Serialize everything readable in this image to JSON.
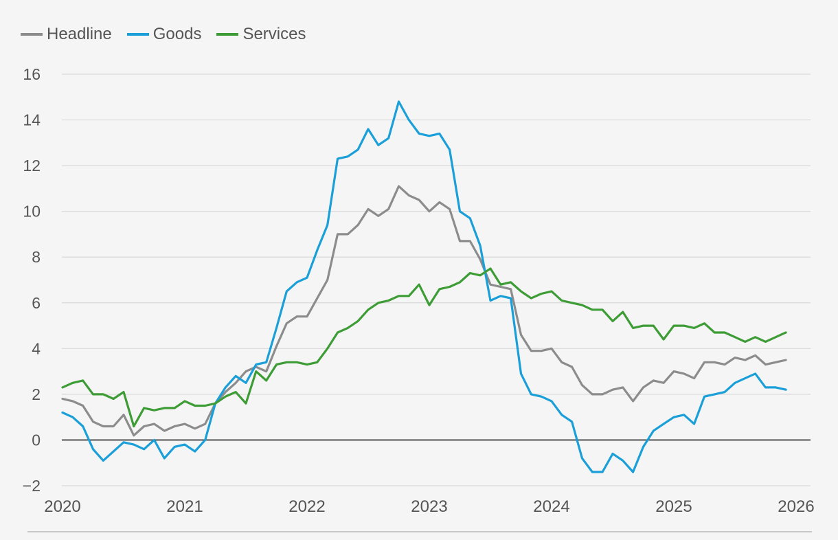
{
  "chart_data": {
    "type": "line",
    "title": "",
    "xlabel": "",
    "ylabel": "",
    "ylim": [
      -2,
      16
    ],
    "yticks": [
      -2,
      0,
      2,
      4,
      6,
      8,
      10,
      12,
      14,
      16
    ],
    "ytick_labels": [
      "−2",
      "0",
      "2",
      "4",
      "6",
      "8",
      "10",
      "12",
      "14",
      "16"
    ],
    "xlim": [
      2020,
      2026
    ],
    "xticks": [
      2020,
      2021,
      2022,
      2023,
      2024,
      2025,
      2026
    ],
    "xtick_labels": [
      "2020",
      "2021",
      "2022",
      "2023",
      "2024",
      "2025",
      "2026"
    ],
    "grid": true,
    "legend_position": "top-left",
    "x_start": 2020.0,
    "x_step": 0.08333,
    "series": [
      {
        "name": "Headline",
        "color": "#8c8c8c",
        "values": [
          1.8,
          1.7,
          1.5,
          0.8,
          0.6,
          0.6,
          1.1,
          0.2,
          0.6,
          0.7,
          0.4,
          0.6,
          0.7,
          0.5,
          0.7,
          1.6,
          2.1,
          2.5,
          3.0,
          3.2,
          3.0,
          4.1,
          5.1,
          5.4,
          5.4,
          6.2,
          7.0,
          9.0,
          9.0,
          9.4,
          10.1,
          9.8,
          10.1,
          11.1,
          10.7,
          10.5,
          10.0,
          10.4,
          10.1,
          8.7,
          8.7,
          7.9,
          6.8,
          6.7,
          6.6,
          4.6,
          3.9,
          3.9,
          4.0,
          3.4,
          3.2,
          2.4,
          2.0,
          2.0,
          2.2,
          2.3,
          1.7,
          2.3,
          2.6,
          2.5,
          3.0,
          2.9,
          2.7,
          3.4,
          3.4,
          3.3,
          3.6,
          3.5,
          3.7,
          3.3,
          3.4,
          3.5
        ]
      },
      {
        "name": "Goods",
        "color": "#1a9fd8",
        "values": [
          1.2,
          1.0,
          0.6,
          -0.4,
          -0.9,
          -0.5,
          -0.1,
          -0.2,
          -0.4,
          0.0,
          -0.8,
          -0.3,
          -0.2,
          -0.5,
          0.0,
          1.6,
          2.3,
          2.8,
          2.5,
          3.3,
          3.4,
          4.9,
          6.5,
          6.9,
          7.1,
          8.3,
          9.4,
          12.3,
          12.4,
          12.7,
          13.6,
          12.9,
          13.2,
          14.8,
          14.0,
          13.4,
          13.3,
          13.4,
          12.7,
          10.0,
          9.7,
          8.5,
          6.1,
          6.3,
          6.2,
          2.9,
          2.0,
          1.9,
          1.7,
          1.1,
          0.8,
          -0.8,
          -1.4,
          -1.4,
          -0.6,
          -0.9,
          -1.4,
          -0.3,
          0.4,
          0.7,
          1.0,
          1.1,
          0.7,
          1.9,
          2.0,
          2.1,
          2.5,
          2.7,
          2.9,
          2.3,
          2.3,
          2.2
        ]
      },
      {
        "name": "Services",
        "color": "#3d9c35",
        "values": [
          2.3,
          2.5,
          2.6,
          2.0,
          2.0,
          1.8,
          2.1,
          0.6,
          1.4,
          1.3,
          1.4,
          1.4,
          1.7,
          1.5,
          1.5,
          1.6,
          1.9,
          2.1,
          1.6,
          3.0,
          2.6,
          3.3,
          3.4,
          3.4,
          3.3,
          3.4,
          4.0,
          4.7,
          4.9,
          5.2,
          5.7,
          6.0,
          6.1,
          6.3,
          6.3,
          6.8,
          5.9,
          6.6,
          6.7,
          6.9,
          7.3,
          7.2,
          7.5,
          6.8,
          6.9,
          6.5,
          6.2,
          6.4,
          6.5,
          6.1,
          6.0,
          5.9,
          5.7,
          5.7,
          5.2,
          5.6,
          4.9,
          5.0,
          5.0,
          4.4,
          5.0,
          5.0,
          4.9,
          5.1,
          4.7,
          4.7,
          4.5,
          4.3,
          4.5,
          4.3,
          4.5,
          4.7
        ]
      }
    ]
  }
}
